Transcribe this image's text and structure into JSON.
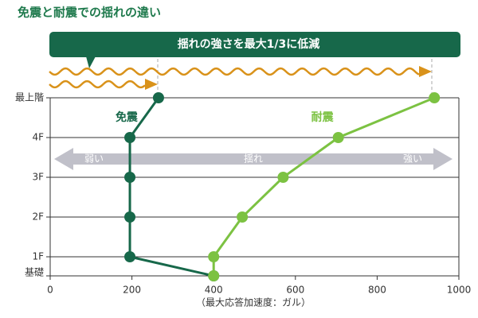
{
  "chart_data": {
    "type": "line",
    "title": "免震と耐震での揺れの違い",
    "annotations": {
      "banner": "揺れの強さを最大1/3に低減",
      "weak": "弱い",
      "shake": "揺れ",
      "strong": "強い"
    },
    "x_label": "（最大応答加速度：ガル）",
    "categories": [
      "基礎",
      "1F",
      "2F",
      "3F",
      "4F",
      "最上階"
    ],
    "series": [
      {
        "name": "免震",
        "color": "#17684a",
        "values": [
          400,
          195,
          195,
          195,
          195,
          265
        ]
      },
      {
        "name": "耐震",
        "color": "#7cc242",
        "values": [
          400,
          400,
          470,
          570,
          705,
          940
        ]
      }
    ],
    "xlim": [
      0,
      1000
    ],
    "xticks": [
      0,
      200,
      400,
      600,
      800,
      1000
    ],
    "grid": true
  }
}
